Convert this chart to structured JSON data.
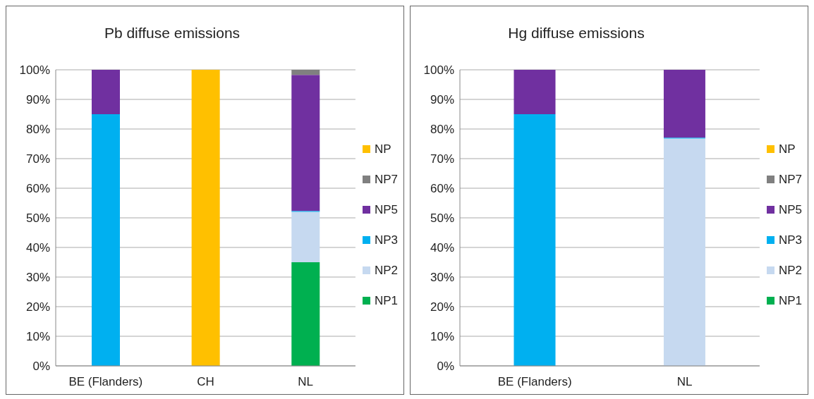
{
  "chart_data": [
    {
      "type": "bar",
      "title": "Pb diffuse emissions",
      "categories": [
        "BE (Flanders)",
        "CH",
        "NL"
      ],
      "stacked": true,
      "grid": "y",
      "legend": "right",
      "ylim": [
        0,
        100
      ],
      "yticks": [
        {
          "value": 0,
          "label": "0%"
        },
        {
          "value": 10,
          "label": "10%"
        },
        {
          "value": 20,
          "label": "20%"
        },
        {
          "value": 30,
          "label": "30%"
        },
        {
          "value": 40,
          "label": "40%"
        },
        {
          "value": 50,
          "label": "50%"
        },
        {
          "value": 60,
          "label": "60%"
        },
        {
          "value": 70,
          "label": "70%"
        },
        {
          "value": 80,
          "label": "80%"
        },
        {
          "value": 90,
          "label": "90%"
        },
        {
          "value": 100,
          "label": "100%"
        }
      ],
      "series": [
        {
          "name": "NP1",
          "color": "#00b050",
          "values": [
            null,
            null,
            35
          ]
        },
        {
          "name": "NP2",
          "color": "#c6d9f0",
          "values": [
            null,
            null,
            17
          ]
        },
        {
          "name": "NP3",
          "color": "#00b0f0",
          "values": [
            85,
            null,
            0.3
          ]
        },
        {
          "name": "NP5",
          "color": "#7030a0",
          "values": [
            15,
            null,
            46
          ]
        },
        {
          "name": "NP7",
          "color": "#808080",
          "values": [
            null,
            null,
            1.7
          ]
        },
        {
          "name": "NP",
          "color": "#ffc000",
          "values": [
            null,
            100,
            null
          ]
        }
      ]
    },
    {
      "type": "bar",
      "title": "Hg diffuse emissions",
      "categories": [
        "BE (Flanders)",
        "NL"
      ],
      "stacked": true,
      "grid": "y",
      "legend": "right",
      "ylim": [
        0,
        100
      ],
      "yticks": [
        {
          "value": 0,
          "label": "0%"
        },
        {
          "value": 10,
          "label": "10%"
        },
        {
          "value": 20,
          "label": "20%"
        },
        {
          "value": 30,
          "label": "30%"
        },
        {
          "value": 40,
          "label": "40%"
        },
        {
          "value": 50,
          "label": "50%"
        },
        {
          "value": 60,
          "label": "60%"
        },
        {
          "value": 70,
          "label": "70%"
        },
        {
          "value": 80,
          "label": "80%"
        },
        {
          "value": 90,
          "label": "90%"
        },
        {
          "value": 100,
          "label": "100%"
        }
      ],
      "series": [
        {
          "name": "NP1",
          "color": "#00b050",
          "values": [
            null,
            null
          ]
        },
        {
          "name": "NP2",
          "color": "#c6d9f0",
          "values": [
            null,
            76.8
          ]
        },
        {
          "name": "NP3",
          "color": "#00b0f0",
          "values": [
            85,
            0.3
          ]
        },
        {
          "name": "NP5",
          "color": "#7030a0",
          "values": [
            15,
            23
          ]
        },
        {
          "name": "NP7",
          "color": "#808080",
          "values": [
            null,
            null
          ]
        },
        {
          "name": "NP",
          "color": "#ffc000",
          "values": [
            null,
            null
          ]
        }
      ]
    }
  ]
}
